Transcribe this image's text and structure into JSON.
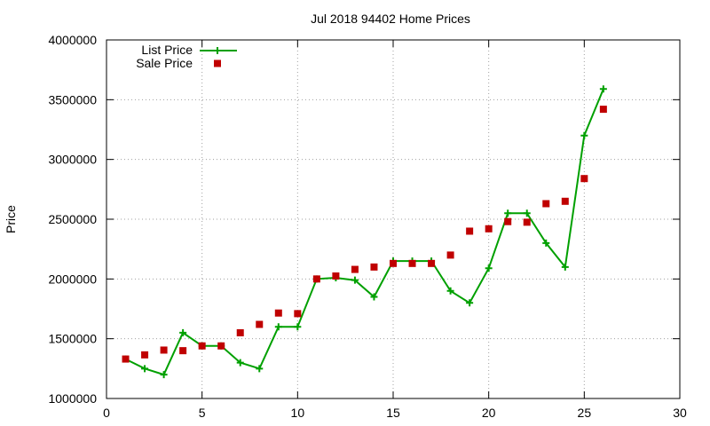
{
  "chart_data": {
    "type": "scatter",
    "title": "Jul 2018 94402 Home Prices",
    "ylabel": "Price",
    "xlim": [
      0,
      30
    ],
    "ylim": [
      1000000,
      4000000
    ],
    "xticks": [
      "0",
      "5",
      "10",
      "15",
      "20",
      "25",
      "30"
    ],
    "yticks": [
      "1000000",
      "1500000",
      "2000000",
      "2500000",
      "3000000",
      "3500000",
      "4000000"
    ],
    "grid": true,
    "legend_position": "top-left",
    "x": [
      1,
      2,
      3,
      4,
      5,
      6,
      7,
      8,
      9,
      10,
      11,
      12,
      13,
      14,
      15,
      16,
      17,
      18,
      19,
      20,
      21,
      22,
      23,
      24,
      25,
      26
    ],
    "series": [
      {
        "name": "List Price",
        "style": "line-plus",
        "color": "#00a000",
        "values": [
          1330000,
          1250000,
          1200000,
          1550000,
          1440000,
          1440000,
          1300000,
          1250000,
          1600000,
          1600000,
          2000000,
          2010000,
          1990000,
          1850000,
          2150000,
          2150000,
          2150000,
          1900000,
          1800000,
          2090000,
          2550000,
          2550000,
          2300000,
          2100000,
          3200000,
          3590000
        ]
      },
      {
        "name": "Sale Price",
        "style": "square",
        "color": "#c00000",
        "values": [
          1330000,
          1365000,
          1405000,
          1400000,
          1440000,
          1440000,
          1550000,
          1620000,
          1715000,
          1710000,
          2000000,
          2025000,
          2080000,
          2100000,
          2130000,
          2130000,
          2130000,
          2200000,
          2400000,
          2420000,
          2480000,
          2475000,
          2630000,
          2650000,
          2840000,
          3420000
        ]
      }
    ]
  }
}
